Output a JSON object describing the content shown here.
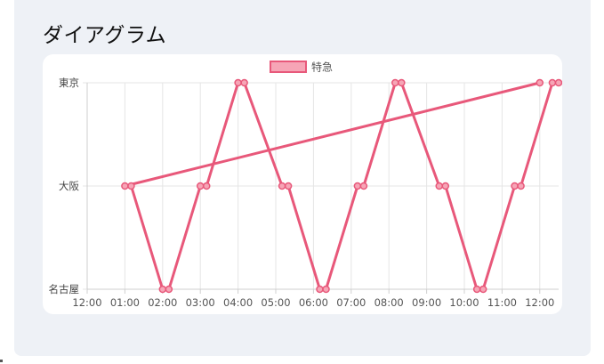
{
  "panel": {
    "title": "ダイアグラム"
  },
  "chart_data": {
    "type": "line",
    "legend": "top",
    "grid": true,
    "x_tick_labels": [
      "12:00",
      "01:00",
      "02:00",
      "03:00",
      "04:00",
      "05:00",
      "06:00",
      "07:00",
      "08:00",
      "09:00",
      "10:00",
      "11:00",
      "12:00"
    ],
    "y_categories": [
      "名古屋",
      "大阪",
      "東京"
    ],
    "series": [
      {
        "name": "特急",
        "color": "#e8587a",
        "fill": "#f6a5b6",
        "points": [
          {
            "x": "12:00",
            "y": "東京"
          },
          {
            "x": "01:00",
            "y": "大阪"
          },
          {
            "x": "01:10",
            "y": "大阪"
          },
          {
            "x": "02:00",
            "y": "名古屋"
          },
          {
            "x": "02:10",
            "y": "名古屋"
          },
          {
            "x": "03:00",
            "y": "大阪"
          },
          {
            "x": "03:10",
            "y": "大阪"
          },
          {
            "x": "04:00",
            "y": "東京"
          },
          {
            "x": "04:10",
            "y": "東京"
          },
          {
            "x": "05:10",
            "y": "大阪"
          },
          {
            "x": "05:20",
            "y": "大阪"
          },
          {
            "x": "06:10",
            "y": "名古屋"
          },
          {
            "x": "06:20",
            "y": "名古屋"
          },
          {
            "x": "07:10",
            "y": "大阪"
          },
          {
            "x": "07:20",
            "y": "大阪"
          },
          {
            "x": "08:10",
            "y": "東京"
          },
          {
            "x": "08:20",
            "y": "東京"
          },
          {
            "x": "09:20",
            "y": "大阪"
          },
          {
            "x": "09:30",
            "y": "大阪"
          },
          {
            "x": "10:20",
            "y": "名古屋"
          },
          {
            "x": "10:30",
            "y": "名古屋"
          },
          {
            "x": "11:20",
            "y": "大阪"
          },
          {
            "x": "11:30",
            "y": "大阪"
          },
          {
            "x": "12:20",
            "y": "東京"
          },
          {
            "x": "12:30",
            "y": "東京"
          }
        ]
      }
    ]
  }
}
